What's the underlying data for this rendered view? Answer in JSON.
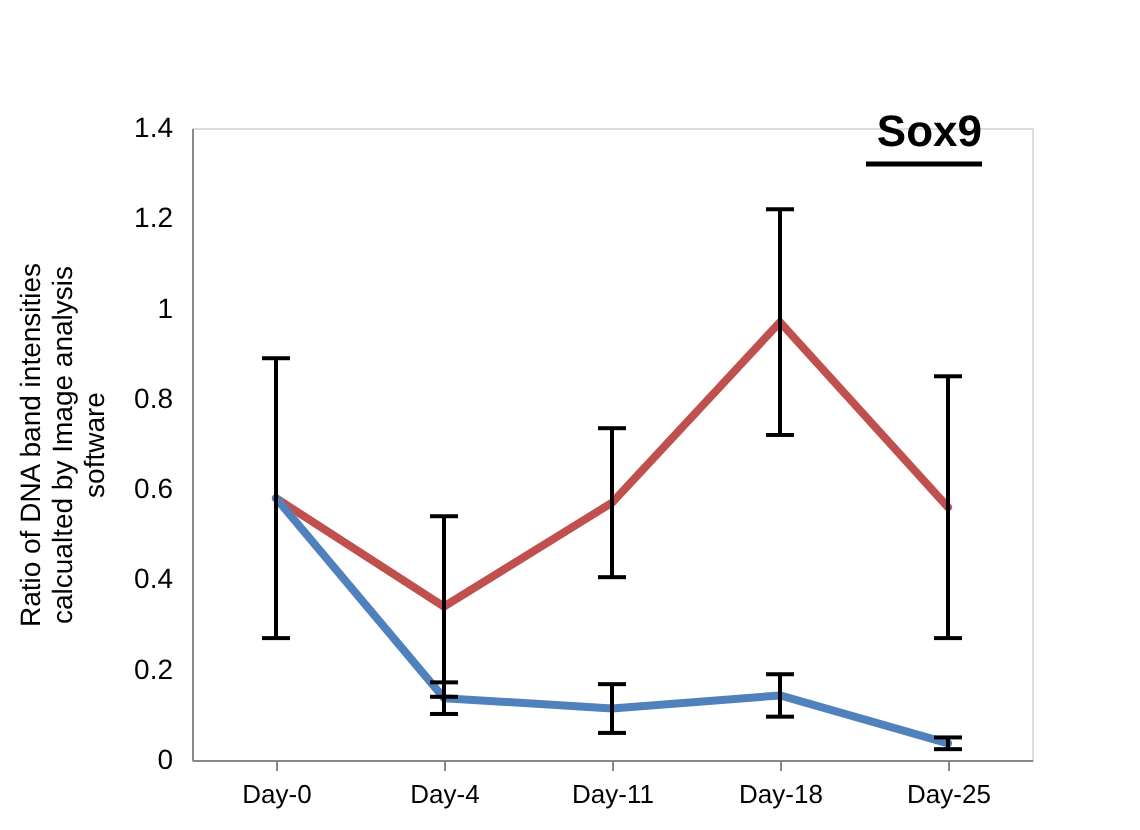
{
  "chart_data": {
    "type": "line",
    "title": "Sox9",
    "ylabel": "Ratio of DNA band intensities calcualted by Image analysis software",
    "categories": [
      "Day-0",
      "Day-4",
      "Day-11",
      "Day-18",
      "Day-25"
    ],
    "series": [
      {
        "color": "#c0504d",
        "values": [
          0.58,
          0.34,
          0.57,
          0.97,
          0.56
        ],
        "errors": [
          0.31,
          0.2,
          0.165,
          0.25,
          0.29
        ]
      },
      {
        "color": "#4f81bd",
        "values": [
          0.58,
          0.137,
          0.114,
          0.143,
          0.037
        ],
        "errors": [
          null,
          0.035,
          0.054,
          0.047,
          0.013
        ]
      }
    ],
    "ylim": [
      0,
      1.4
    ],
    "yticks": [
      0,
      0.2,
      0.4,
      0.6,
      0.8,
      1,
      1.2,
      1.4
    ],
    "grid": false,
    "marker": "none"
  }
}
